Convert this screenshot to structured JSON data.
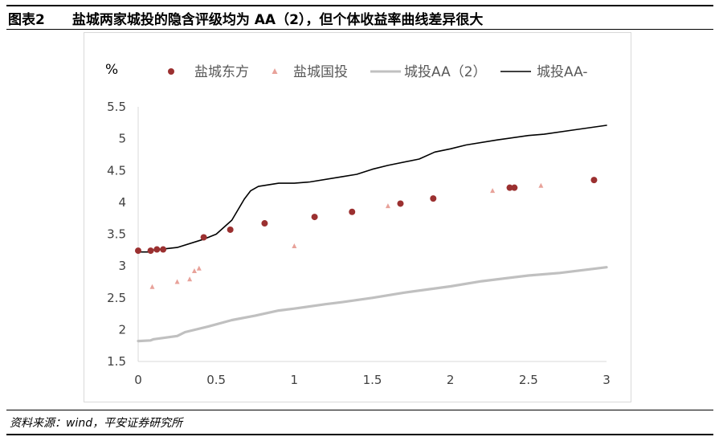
{
  "figure": {
    "number": "图表2",
    "title": "盐城两家城投的隐含评级均为 AA（2），但个体收益率曲线差异很大"
  },
  "source": {
    "label": "资料来源：",
    "items": [
      "wind",
      "，平安证券研究所"
    ]
  },
  "chart_data": {
    "type": "scatter",
    "ylabel": "%",
    "xlim": [
      0,
      3
    ],
    "ylim": [
      1.5,
      5.5
    ],
    "xticks": [
      "0",
      "0.5",
      "1",
      "1.5",
      "2",
      "2.5",
      "3"
    ],
    "yticks": [
      "1.5",
      "2",
      "2.5",
      "3",
      "3.5",
      "4",
      "4.5",
      "5",
      "5.5"
    ],
    "xtick_values": [
      0,
      0.5,
      1,
      1.5,
      2,
      2.5,
      3
    ],
    "ytick_values": [
      1.5,
      2,
      2.5,
      3,
      3.5,
      4,
      4.5,
      5,
      5.5
    ],
    "grid": false,
    "legend_position": "top",
    "series": [
      {
        "name": "盐城东方",
        "kind": "points",
        "marker": "circle",
        "color": "#9b3030",
        "points": [
          [
            0.0,
            3.24
          ],
          [
            0.08,
            3.24
          ],
          [
            0.12,
            3.26
          ],
          [
            0.16,
            3.26
          ],
          [
            0.42,
            3.45
          ],
          [
            0.59,
            3.57
          ],
          [
            0.81,
            3.67
          ],
          [
            1.13,
            3.77
          ],
          [
            1.37,
            3.85
          ],
          [
            1.68,
            3.98
          ],
          [
            1.89,
            4.06
          ],
          [
            2.38,
            4.23
          ],
          [
            2.41,
            4.23
          ],
          [
            2.92,
            4.35
          ]
        ]
      },
      {
        "name": "盐城国投",
        "kind": "points",
        "marker": "triangle",
        "color": "#e8a29a",
        "points": [
          [
            0.09,
            2.67
          ],
          [
            0.25,
            2.75
          ],
          [
            0.33,
            2.79
          ],
          [
            0.36,
            2.92
          ],
          [
            0.39,
            2.96
          ],
          [
            1.0,
            3.31
          ],
          [
            1.6,
            3.94
          ],
          [
            2.27,
            4.18
          ],
          [
            2.58,
            4.26
          ]
        ]
      },
      {
        "name": "城投AA（2）",
        "kind": "line",
        "color": "#c0c0c0",
        "points": [
          [
            0.0,
            1.82
          ],
          [
            0.08,
            1.83
          ],
          [
            0.1,
            1.85
          ],
          [
            0.25,
            1.9
          ],
          [
            0.3,
            1.96
          ],
          [
            0.45,
            2.05
          ],
          [
            0.6,
            2.15
          ],
          [
            0.75,
            2.22
          ],
          [
            0.9,
            2.3
          ],
          [
            1.0,
            2.33
          ],
          [
            1.2,
            2.4
          ],
          [
            1.3,
            2.43
          ],
          [
            1.5,
            2.5
          ],
          [
            1.7,
            2.58
          ],
          [
            2.0,
            2.68
          ],
          [
            2.2,
            2.76
          ],
          [
            2.5,
            2.85
          ],
          [
            2.7,
            2.89
          ],
          [
            3.0,
            2.98
          ]
        ]
      },
      {
        "name": "城投AA-",
        "kind": "line",
        "color": "#000000",
        "points": [
          [
            0.0,
            3.22
          ],
          [
            0.07,
            3.22
          ],
          [
            0.1,
            3.25
          ],
          [
            0.25,
            3.29
          ],
          [
            0.42,
            3.42
          ],
          [
            0.5,
            3.5
          ],
          [
            0.6,
            3.72
          ],
          [
            0.68,
            4.05
          ],
          [
            0.72,
            4.18
          ],
          [
            0.77,
            4.25
          ],
          [
            0.9,
            4.3
          ],
          [
            1.0,
            4.3
          ],
          [
            1.1,
            4.32
          ],
          [
            1.3,
            4.4
          ],
          [
            1.4,
            4.44
          ],
          [
            1.5,
            4.52
          ],
          [
            1.6,
            4.58
          ],
          [
            1.8,
            4.68
          ],
          [
            1.9,
            4.79
          ],
          [
            2.0,
            4.84
          ],
          [
            2.1,
            4.9
          ],
          [
            2.3,
            4.98
          ],
          [
            2.5,
            5.05
          ],
          [
            2.6,
            5.07
          ],
          [
            2.8,
            5.14
          ],
          [
            3.0,
            5.21
          ]
        ]
      }
    ]
  }
}
